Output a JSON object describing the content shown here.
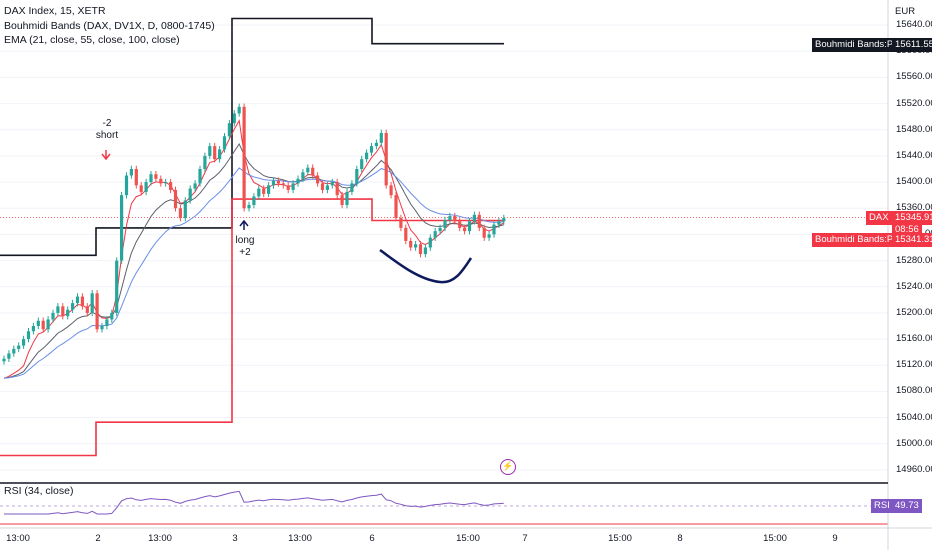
{
  "legend": {
    "symbol": "DAX Index, 15, XETR",
    "indicator1": "Bouhmidi Bands (DAX, DV1X, D, 0800-1745)",
    "indicator2": "EMA (21, close, 55, close, 100, close)"
  },
  "rsi": {
    "label": "RSI (34, close)",
    "value": "49.73"
  },
  "price_axis": {
    "currency": "EUR",
    "ticks": [
      "15640.00",
      "15600.00",
      "15560.00",
      "15520.00",
      "15480.00",
      "15440.00",
      "15400.00",
      "15360.00",
      "15320.00",
      "15280.00",
      "15240.00",
      "15200.00",
      "15160.00",
      "15120.00",
      "15080.00",
      "15040.00",
      "15000.00",
      "14960.00"
    ]
  },
  "tags": {
    "band_upper_label": "Bouhmidi Bands:Plot",
    "band_upper_value": "15611.55",
    "dax_label": "DAX",
    "dax_value": "15345.91",
    "countdown": "08:56",
    "band_lower_label": "Bouhmidi Bands:Plot",
    "band_lower_value": "15341.31"
  },
  "annotations": {
    "short_qty": "-2",
    "short_label": "short",
    "long_label": "long",
    "long_qty": "+2"
  },
  "time_axis": [
    "13:00",
    "2",
    "13:00",
    "3",
    "13:00",
    "6",
    "15:00",
    "7",
    "15:00",
    "8",
    "15:00",
    "9"
  ],
  "colors": {
    "up": "#26a69a",
    "down": "#ef5350",
    "band_top": "#131722",
    "band_bottom": "#f23645",
    "ema21": "#f23645",
    "ema55": "#5d606b",
    "ema100": "#6a8ee8",
    "rsi": "#7e57c2",
    "drawing": "#0d1b5e"
  },
  "chart_data": {
    "type": "candlestick",
    "ylim": [
      14940,
      15660
    ],
    "closes": [
      15130,
      15138,
      15145,
      15150,
      15160,
      15172,
      15180,
      15188,
      15175,
      15190,
      15200,
      15210,
      15195,
      15205,
      15215,
      15225,
      15210,
      15200,
      15230,
      15175,
      15180,
      15190,
      15200,
      15280,
      15380,
      15410,
      15420,
      15395,
      15385,
      15400,
      15412,
      15405,
      15398,
      15400,
      15388,
      15360,
      15345,
      15372,
      15390,
      15398,
      15420,
      15440,
      15455,
      15435,
      15450,
      15470,
      15490,
      15505,
      15515,
      15360,
      15365,
      15378,
      15390,
      15382,
      15395,
      15402,
      15398,
      15395,
      15388,
      15398,
      15405,
      15415,
      15422,
      15410,
      15398,
      15388,
      15395,
      15400,
      15380,
      15365,
      15385,
      15398,
      15420,
      15435,
      15445,
      15455,
      15460,
      15475,
      15395,
      15380,
      15345,
      15330,
      15310,
      15300,
      15305,
      15290,
      15300,
      15315,
      15325,
      15330,
      15342,
      15348,
      15340,
      15330,
      15325,
      15340,
      15350,
      15330,
      15315,
      15320,
      15335,
      15340,
      15345
    ]
  }
}
